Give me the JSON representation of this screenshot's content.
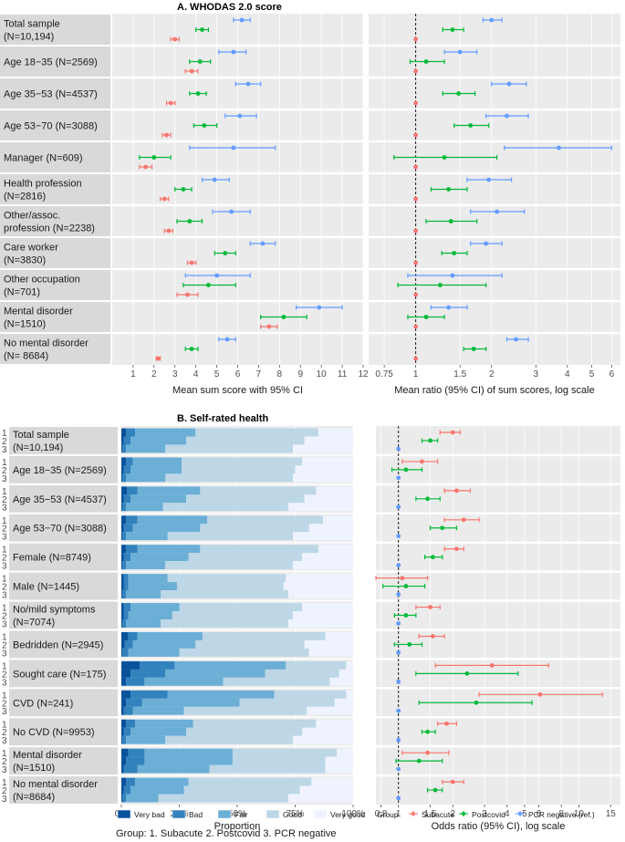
{
  "chart_data": [
    {
      "type": "forest",
      "panel": "A1",
      "title": "A. WHODAS 2.0 score",
      "xlabel": "Mean sum score with 95% CI",
      "xlim": [
        0,
        12
      ],
      "ticks": [
        "1",
        "2",
        "3",
        "4",
        "5",
        "6",
        "7",
        "8",
        "9",
        "10",
        "11",
        "12"
      ],
      "tick_values": [
        1,
        2,
        3,
        4,
        5,
        6,
        7,
        8,
        9,
        10,
        11,
        12
      ],
      "row_labels": [
        [
          "Total sample",
          "(N=10,194)"
        ],
        [
          "Age 18−35 (N=2569)"
        ],
        [
          "Age 35−53 (N=4537)"
        ],
        [
          "Age 53−70 (N=3088)"
        ],
        [
          "Manager (N=609)"
        ],
        [
          "Health profession",
          "(N=2816)"
        ],
        [
          "Other/assoc.",
          "profession (N=2238)"
        ],
        [
          "Care worker",
          "(N=3830)"
        ],
        [
          "Other occupation",
          "(N=701)"
        ],
        [
          "Mental disorder",
          "(N=1510)"
        ],
        [
          "No mental disorder",
          "(N= 8684)"
        ]
      ],
      "series": [
        {
          "name": "PCR negative",
          "color": "#619CFF",
          "est": [
            6.2,
            5.8,
            6.5,
            6.1,
            5.8,
            4.9,
            5.7,
            7.2,
            5.0,
            9.9,
            5.5
          ],
          "lo": [
            5.8,
            5.1,
            5.9,
            5.4,
            3.7,
            4.3,
            4.8,
            6.6,
            3.5,
            8.8,
            5.1
          ],
          "hi": [
            6.6,
            6.4,
            7.1,
            6.9,
            7.8,
            5.6,
            6.6,
            7.8,
            6.6,
            11.0,
            5.9
          ]
        },
        {
          "name": "Postcovid",
          "color": "#00BA38",
          "est": [
            4.3,
            4.2,
            4.1,
            4.4,
            2.0,
            3.4,
            3.7,
            5.4,
            4.6,
            8.2,
            3.8
          ],
          "lo": [
            4.0,
            3.7,
            3.7,
            3.9,
            1.3,
            3.0,
            3.1,
            4.9,
            3.4,
            7.1,
            3.5
          ],
          "hi": [
            4.6,
            4.7,
            4.5,
            5.0,
            2.8,
            3.8,
            4.3,
            5.9,
            5.9,
            9.3,
            4.1
          ]
        },
        {
          "name": "Subacute",
          "color": "#F8766D",
          "est": [
            3.0,
            3.8,
            2.8,
            2.6,
            1.6,
            2.5,
            2.7,
            3.8,
            3.6,
            7.5,
            2.2
          ],
          "lo": [
            2.8,
            3.5,
            2.6,
            2.4,
            1.3,
            2.3,
            2.5,
            3.6,
            3.1,
            7.1,
            2.1
          ],
          "hi": [
            3.2,
            4.1,
            3.0,
            2.8,
            1.9,
            2.7,
            2.9,
            4.0,
            4.1,
            7.9,
            2.3
          ]
        }
      ]
    },
    {
      "type": "forest",
      "panel": "A2",
      "xlabel": "Mean ratio (95% CI) of sum scores, log scale",
      "scale": "log",
      "xlim": [
        0.65,
        6.5
      ],
      "ticks": [
        "0.75",
        "1",
        "1.5",
        "2",
        "3",
        "4",
        "5",
        "6"
      ],
      "tick_values": [
        0.75,
        1,
        1.5,
        2,
        3,
        4,
        5,
        6
      ],
      "reference_line": 1,
      "series": [
        {
          "name": "PCR negative",
          "color": "#619CFF",
          "est": [
            2.0,
            1.5,
            2.35,
            2.3,
            3.7,
            1.95,
            2.1,
            1.9,
            1.4,
            1.35,
            2.5
          ],
          "lo": [
            1.85,
            1.3,
            2.0,
            1.9,
            2.25,
            1.6,
            1.65,
            1.65,
            0.93,
            1.15,
            2.3
          ],
          "hi": [
            2.2,
            1.75,
            2.75,
            2.8,
            6.0,
            2.4,
            2.7,
            2.2,
            2.2,
            1.6,
            2.8
          ]
        },
        {
          "name": "Postcovid",
          "color": "#00BA38",
          "est": [
            1.4,
            1.1,
            1.48,
            1.65,
            1.3,
            1.35,
            1.38,
            1.42,
            1.25,
            1.1,
            1.7
          ],
          "lo": [
            1.28,
            0.95,
            1.28,
            1.42,
            0.82,
            1.15,
            1.1,
            1.27,
            0.85,
            0.93,
            1.55
          ],
          "hi": [
            1.55,
            1.3,
            1.72,
            1.95,
            2.1,
            1.6,
            1.75,
            1.6,
            1.9,
            1.3,
            1.9
          ]
        },
        {
          "name": "Subacute (ref.)",
          "color": "#F8766D",
          "est": [
            1,
            1,
            1,
            1,
            1,
            1,
            1,
            1,
            1,
            1,
            1
          ]
        }
      ]
    },
    {
      "type": "stacked_bar",
      "panel": "B1",
      "title": "B. Self-rated health",
      "xlabel": "Proportion",
      "ticks": [
        "0%",
        "25%",
        "50%",
        "75%",
        "100%"
      ],
      "tick_values": [
        0,
        0.25,
        0.5,
        0.75,
        1.0
      ],
      "categories": [
        "Very bad",
        "Bad",
        "Fair",
        "Good",
        "Very good"
      ],
      "colors": [
        "#08519C",
        "#3182BD",
        "#6BAED6",
        "#BDD7E7",
        "#EFF3FF"
      ],
      "group_codes": [
        "1",
        "2",
        "3"
      ],
      "row_labels": [
        [
          "Total sample",
          "(N=10,194)"
        ],
        [
          "Age 18−35 (N=2569)"
        ],
        [
          "Age 35−53 (N=4537)"
        ],
        [
          "Age 53−70 (N=3088)"
        ],
        [
          "Female (N=8749)"
        ],
        [
          "Male (N=1445)"
        ],
        [
          "No/mild symptoms",
          "(N=7074)"
        ],
        [
          "Bedridden (N=2945)"
        ],
        [
          "Sought care (N=175)"
        ],
        [
          "CVD (N=241)"
        ],
        [
          "No CVD (N=9953)"
        ],
        [
          "Mental disorder",
          "(N=1510)"
        ],
        [
          "No mental disorder",
          "(N=8684)"
        ]
      ],
      "cumulative": [
        [
          [
            0.02,
            0.06,
            0.32,
            0.85
          ],
          [
            0.01,
            0.04,
            0.28,
            0.79
          ],
          [
            0.005,
            0.02,
            0.19,
            0.74
          ]
        ],
        [
          [
            0.02,
            0.05,
            0.26,
            0.78
          ],
          [
            0.01,
            0.04,
            0.26,
            0.75
          ],
          [
            0.005,
            0.02,
            0.19,
            0.74
          ]
        ],
        [
          [
            0.025,
            0.07,
            0.34,
            0.84
          ],
          [
            0.01,
            0.04,
            0.28,
            0.79
          ],
          [
            0.005,
            0.02,
            0.18,
            0.72
          ]
        ],
        [
          [
            0.02,
            0.07,
            0.37,
            0.87
          ],
          [
            0.01,
            0.05,
            0.34,
            0.81
          ],
          [
            0.005,
            0.02,
            0.2,
            0.74
          ]
        ],
        [
          [
            0.02,
            0.07,
            0.34,
            0.85
          ],
          [
            0.01,
            0.04,
            0.29,
            0.78
          ],
          [
            0.005,
            0.02,
            0.19,
            0.74
          ]
        ],
        [
          [
            0.01,
            0.03,
            0.2,
            0.71
          ],
          [
            0.01,
            0.03,
            0.24,
            0.7
          ],
          [
            0.005,
            0.02,
            0.17,
            0.72
          ]
        ],
        [
          [
            0.01,
            0.04,
            0.25,
            0.78
          ],
          [
            0.01,
            0.03,
            0.22,
            0.74
          ],
          [
            0.005,
            0.02,
            0.17,
            0.72
          ]
        ],
        [
          [
            0.03,
            0.07,
            0.35,
            0.88
          ],
          [
            0.015,
            0.05,
            0.32,
            0.79
          ],
          [
            0.005,
            0.03,
            0.25,
            0.81
          ]
        ],
        [
          [
            0.08,
            0.23,
            0.71,
            0.97
          ],
          [
            0.04,
            0.19,
            0.62,
            0.94
          ],
          [
            0.02,
            0.1,
            0.44,
            0.9
          ]
        ],
        [
          [
            0.04,
            0.2,
            0.66,
            0.97
          ],
          [
            0.02,
            0.09,
            0.51,
            0.92
          ],
          [
            0.01,
            0.05,
            0.27,
            0.8
          ]
        ],
        [
          [
            0.02,
            0.06,
            0.31,
            0.84
          ],
          [
            0.01,
            0.04,
            0.28,
            0.78
          ],
          [
            0.005,
            0.02,
            0.19,
            0.74
          ]
        ],
        [
          [
            0.03,
            0.1,
            0.48,
            0.93
          ],
          [
            0.02,
            0.1,
            0.48,
            0.88
          ],
          [
            0.01,
            0.07,
            0.38,
            0.88
          ]
        ],
        [
          [
            0.02,
            0.06,
            0.29,
            0.82
          ],
          [
            0.01,
            0.04,
            0.27,
            0.77
          ],
          [
            0.005,
            0.02,
            0.16,
            0.72
          ]
        ]
      ]
    },
    {
      "type": "forest",
      "panel": "B2",
      "xlabel": "Odds ratio (95% CI), log scale",
      "scale": "log",
      "xlim": [
        0.75,
        17
      ],
      "ticks": [
        "0.8",
        "1",
        "1.5",
        "2",
        "3",
        "4",
        "5",
        "6",
        "8",
        "10",
        "15"
      ],
      "tick_values": [
        0.8,
        1,
        1.5,
        2,
        3,
        4,
        5,
        6,
        8,
        10,
        15
      ],
      "reference_line": 1,
      "series": [
        {
          "name": "Subacute",
          "color": "#F8766D",
          "est": [
            2.0,
            1.35,
            2.1,
            2.3,
            2.1,
            1.05,
            1.5,
            1.55,
            3.3,
            6.1,
            1.85,
            1.45,
            2.0
          ],
          "lo": [
            1.7,
            1.05,
            1.8,
            1.8,
            1.8,
            0.75,
            1.25,
            1.3,
            1.6,
            2.8,
            1.65,
            1.05,
            1.75
          ],
          "hi": [
            2.2,
            1.65,
            2.5,
            2.8,
            2.3,
            1.45,
            1.7,
            1.8,
            6.8,
            13.5,
            2.1,
            1.9,
            2.3
          ]
        },
        {
          "name": "Postcovid",
          "color": "#00BA38",
          "est": [
            1.5,
            1.1,
            1.45,
            1.75,
            1.55,
            1.1,
            1.1,
            1.15,
            2.4,
            2.7,
            1.45,
            1.3,
            1.6
          ],
          "lo": [
            1.35,
            0.92,
            1.25,
            1.5,
            1.4,
            0.82,
            0.95,
            0.95,
            1.25,
            1.3,
            1.35,
            0.97,
            1.45
          ],
          "hi": [
            1.65,
            1.35,
            1.7,
            2.1,
            1.75,
            1.4,
            1.25,
            1.35,
            4.6,
            5.5,
            1.6,
            1.75,
            1.75
          ]
        },
        {
          "name": "PCR negative (ref.)",
          "color": "#619CFF",
          "est": [
            1,
            1,
            1,
            1,
            1,
            1,
            1,
            1,
            1,
            1,
            1,
            1,
            1
          ]
        }
      ]
    }
  ],
  "legends": {
    "panelB_bar": [
      "Very bad",
      "Bad",
      "Fair",
      "Good",
      "Very good"
    ],
    "panelB_group_title": "Group",
    "panelB_group": [
      "Subacute",
      "Postcovid",
      "PCR negative (ref.)"
    ],
    "footnote": "Group: 1. Subacute 2. Postcovid 3. PCR negative"
  }
}
